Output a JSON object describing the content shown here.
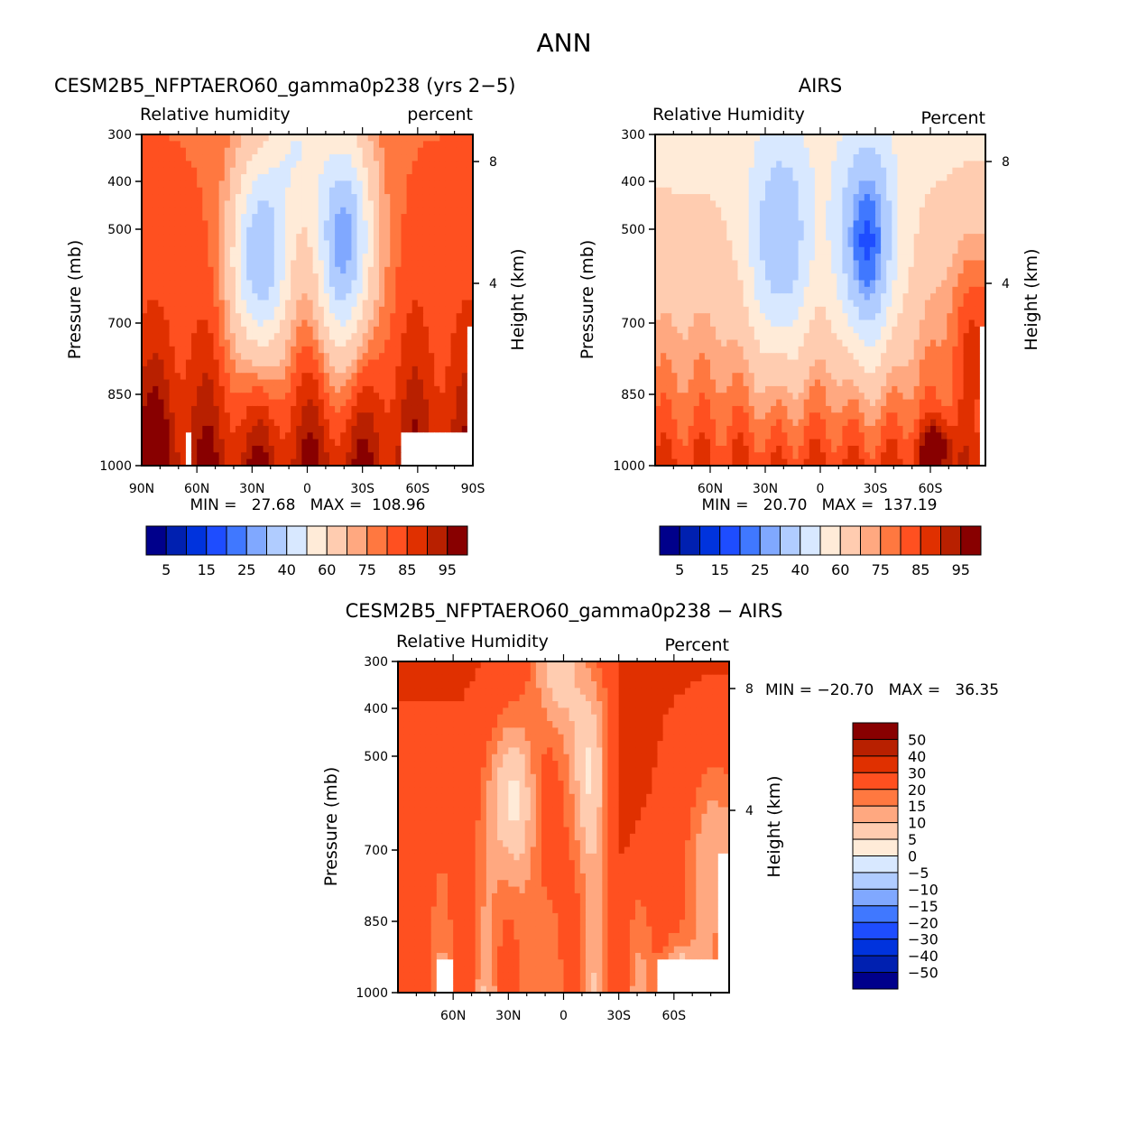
{
  "main_title": "ANN",
  "colors": [
    "#00008B",
    "#0020B0",
    "#0033DD",
    "#1E4DFF",
    "#4078FF",
    "#80A8FF",
    "#B0CCFF",
    "#D8E8FF",
    "#FFEBD8",
    "#FFCCB0",
    "#FFA880",
    "#FF7840",
    "#FF5020",
    "#E03000",
    "#B82000",
    "#880000"
  ],
  "chart_data": [
    {
      "type": "heatmap",
      "title": "CESM2B5_NFPTAERO60_gamma0p238 (yrs 2−5)",
      "subtitle_left": "Relative humidity",
      "subtitle_right": "percent",
      "ylabel": "Pressure (mb)",
      "ylabel_right": "Height (km)",
      "yticks": [
        "300",
        "400",
        "500",
        "700",
        "850",
        "1000"
      ],
      "yticks_right": [
        "8",
        "4"
      ],
      "xticks": [
        "90N",
        "60N",
        "30N",
        "0",
        "30S",
        "60S",
        "90S"
      ],
      "stats": "MIN =   27.68   MAX =  108.96",
      "levels": [
        5,
        10,
        15,
        20,
        25,
        30,
        40,
        50,
        60,
        70,
        75,
        80,
        85,
        90,
        95
      ],
      "colorbar_labels": [
        "5",
        "15",
        "25",
        "40",
        "60",
        "75",
        "85",
        "95"
      ]
    },
    {
      "type": "heatmap",
      "title": "AIRS",
      "subtitle_left": "Relative Humidity",
      "subtitle_right": "Percent",
      "ylabel": "Pressure (mb)",
      "ylabel_right": "Height (km)",
      "yticks": [
        "300",
        "400",
        "500",
        "700",
        "850",
        "1000"
      ],
      "yticks_right": [
        "8",
        "4"
      ],
      "xticks": [
        "60N",
        "30N",
        "0",
        "30S",
        "60S"
      ],
      "stats": "MIN =   20.70   MAX =  137.19",
      "levels": [
        5,
        10,
        15,
        20,
        25,
        30,
        40,
        50,
        60,
        70,
        75,
        80,
        85,
        90,
        95
      ],
      "colorbar_labels": [
        "5",
        "15",
        "25",
        "40",
        "60",
        "75",
        "85",
        "95"
      ]
    },
    {
      "type": "heatmap",
      "title": "CESM2B5_NFPTAERO60_gamma0p238 − AIRS",
      "subtitle_left": "Relative Humidity",
      "subtitle_right": "Percent",
      "ylabel": "Pressure (mb)",
      "ylabel_right": "Height (km)",
      "yticks": [
        "300",
        "400",
        "500",
        "700",
        "850",
        "1000"
      ],
      "yticks_right": [
        "8",
        "4"
      ],
      "xticks": [
        "60N",
        "30N",
        "0",
        "30S",
        "60S"
      ],
      "stats": "MIN = −20.70   MAX =   36.35",
      "levels": [
        -50,
        -40,
        -30,
        -20,
        -15,
        -10,
        -5,
        0,
        5,
        10,
        15,
        20,
        30,
        40,
        50
      ],
      "colorbar_labels": [
        "50",
        "40",
        "30",
        "20",
        "15",
        "10",
        "5",
        "0",
        "−5",
        "−10",
        "−15",
        "−20",
        "−30",
        "−40",
        "−50"
      ]
    }
  ]
}
